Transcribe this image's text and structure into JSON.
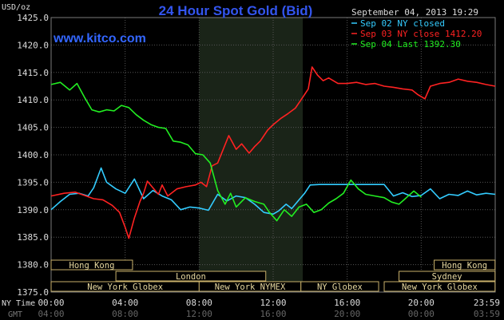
{
  "chart_data": {
    "type": "line",
    "title": "24 Hour Spot Gold (Bid)",
    "website": "www.kitco.com",
    "ylabel": "USD/oz",
    "ylim": [
      1375.0,
      1425.0
    ],
    "y_ticks": [
      "1425.0",
      "1420.0",
      "1415.0",
      "1410.0",
      "1405.0",
      "1400.0",
      "1395.0",
      "1390.0",
      "1385.0",
      "1380.0",
      "1375.0"
    ],
    "x_ticks_ny": [
      "00:00",
      "04:00",
      "08:00",
      "12:00",
      "16:00",
      "20:00",
      "23:59"
    ],
    "x_ticks_gmt": [
      "04:00",
      "08:00",
      "12:00",
      "16:00",
      "20:00",
      "00:00",
      "03:59"
    ],
    "x_tick_hours": [
      0,
      4,
      8,
      12,
      16,
      20,
      24
    ],
    "xlim_hours": [
      0,
      24
    ],
    "x_row_labels": {
      "ny": "NY Time",
      "gmt": "GMT"
    },
    "timestamp": "September 04, 2013 19:29",
    "grid": true,
    "legend_position": "top-right",
    "shaded_session_hours": [
      8.0,
      13.6
    ],
    "series": [
      {
        "name": "Sep 02 NY closed",
        "color": "#33ccff",
        "points": [
          [
            0,
            1390
          ],
          [
            0.5,
            1391.5
          ],
          [
            1,
            1392.8
          ],
          [
            1.5,
            1393
          ],
          [
            2,
            1392.5
          ],
          [
            2.3,
            1394
          ],
          [
            2.7,
            1397.6
          ],
          [
            3,
            1395
          ],
          [
            3.5,
            1393.8
          ],
          [
            4,
            1393
          ],
          [
            4.5,
            1395.6
          ],
          [
            5,
            1392
          ],
          [
            5.5,
            1393.5
          ],
          [
            6,
            1392.5
          ],
          [
            6.5,
            1391.8
          ],
          [
            7,
            1390
          ],
          [
            7.5,
            1390.5
          ],
          [
            8,
            1390.3
          ],
          [
            8.5,
            1389.9
          ],
          [
            9,
            1392.8
          ],
          [
            9.5,
            1391.6
          ],
          [
            10,
            1392.5
          ],
          [
            10.5,
            1392.2
          ],
          [
            11,
            1391
          ],
          [
            11.5,
            1389.5
          ],
          [
            12,
            1389.2
          ],
          [
            12.3,
            1389.8
          ],
          [
            12.7,
            1391
          ],
          [
            13,
            1390.2
          ],
          [
            13.4,
            1391.8
          ],
          [
            13.7,
            1393
          ],
          [
            14,
            1394.5
          ],
          [
            14.5,
            1394.6
          ],
          [
            15,
            1394.6
          ],
          [
            16,
            1394.6
          ],
          [
            17,
            1394.6
          ],
          [
            18,
            1394.6
          ],
          [
            18.5,
            1392.5
          ],
          [
            19,
            1393.1
          ],
          [
            19.5,
            1392.4
          ],
          [
            20,
            1392.6
          ],
          [
            20.5,
            1393.8
          ],
          [
            21,
            1392
          ],
          [
            21.5,
            1392.8
          ],
          [
            22,
            1392.6
          ],
          [
            22.5,
            1393.4
          ],
          [
            23,
            1392.7
          ],
          [
            23.5,
            1393
          ],
          [
            24,
            1392.8
          ]
        ]
      },
      {
        "name": "Sep 03 NY close 1412.20",
        "color": "#ff2222",
        "points": [
          [
            0,
            1392.5
          ],
          [
            0.7,
            1393
          ],
          [
            1.3,
            1393.2
          ],
          [
            1.8,
            1392.6
          ],
          [
            2.3,
            1392
          ],
          [
            2.8,
            1391.8
          ],
          [
            3.3,
            1390.8
          ],
          [
            3.7,
            1389.5
          ],
          [
            4,
            1386.8
          ],
          [
            4.2,
            1384.8
          ],
          [
            4.5,
            1388.5
          ],
          [
            4.8,
            1391.5
          ],
          [
            5,
            1393
          ],
          [
            5.2,
            1395.2
          ],
          [
            5.5,
            1394
          ],
          [
            5.8,
            1392.8
          ],
          [
            6,
            1394.5
          ],
          [
            6.3,
            1392.5
          ],
          [
            6.8,
            1393.8
          ],
          [
            7.3,
            1394.2
          ],
          [
            7.8,
            1394.5
          ],
          [
            8.1,
            1395
          ],
          [
            8.4,
            1394.2
          ],
          [
            8.7,
            1398
          ],
          [
            9,
            1398.5
          ],
          [
            9.3,
            1401
          ],
          [
            9.6,
            1403.5
          ],
          [
            10,
            1401
          ],
          [
            10.3,
            1402
          ],
          [
            10.7,
            1400.3
          ],
          [
            11,
            1401.5
          ],
          [
            11.3,
            1402.5
          ],
          [
            11.7,
            1404.5
          ],
          [
            12,
            1405.5
          ],
          [
            12.4,
            1406.6
          ],
          [
            12.8,
            1407.5
          ],
          [
            13.2,
            1408.5
          ],
          [
            13.6,
            1410.5
          ],
          [
            13.9,
            1412
          ],
          [
            14.1,
            1416
          ],
          [
            14.4,
            1414.5
          ],
          [
            14.7,
            1413.5
          ],
          [
            15,
            1414
          ],
          [
            15.5,
            1413
          ],
          [
            16,
            1413
          ],
          [
            16.5,
            1413.2
          ],
          [
            17,
            1412.8
          ],
          [
            17.5,
            1413
          ],
          [
            18,
            1412.5
          ],
          [
            18.5,
            1412.3
          ],
          [
            19,
            1412
          ],
          [
            19.5,
            1411.8
          ],
          [
            19.8,
            1411
          ],
          [
            20.2,
            1410.2
          ],
          [
            20.5,
            1412.5
          ],
          [
            21,
            1413
          ],
          [
            21.5,
            1413.2
          ],
          [
            22,
            1413.8
          ],
          [
            22.5,
            1413.4
          ],
          [
            23,
            1413.2
          ],
          [
            23.5,
            1412.8
          ],
          [
            24,
            1412.5
          ]
        ]
      },
      {
        "name": "Sep 04 Last 1392.30",
        "color": "#22ee22",
        "points": [
          [
            0,
            1412.8
          ],
          [
            0.5,
            1413.2
          ],
          [
            1,
            1411.8
          ],
          [
            1.4,
            1413
          ],
          [
            1.8,
            1410.5
          ],
          [
            2.2,
            1408.2
          ],
          [
            2.6,
            1407.8
          ],
          [
            3,
            1408.2
          ],
          [
            3.4,
            1408
          ],
          [
            3.8,
            1409
          ],
          [
            4.2,
            1408.6
          ],
          [
            4.6,
            1407.3
          ],
          [
            5,
            1406.3
          ],
          [
            5.4,
            1405.5
          ],
          [
            5.8,
            1405
          ],
          [
            6.2,
            1404.8
          ],
          [
            6.6,
            1402.5
          ],
          [
            7,
            1402.3
          ],
          [
            7.4,
            1401.8
          ],
          [
            7.8,
            1400.2
          ],
          [
            8.2,
            1400
          ],
          [
            8.6,
            1398.5
          ],
          [
            9,
            1393.5
          ],
          [
            9.4,
            1391
          ],
          [
            9.7,
            1393
          ],
          [
            10,
            1390.5
          ],
          [
            10.5,
            1392.2
          ],
          [
            11,
            1391.5
          ],
          [
            11.5,
            1391
          ],
          [
            11.8,
            1389.5
          ],
          [
            12.2,
            1388
          ],
          [
            12.6,
            1390
          ],
          [
            13,
            1388.8
          ],
          [
            13.4,
            1390.5
          ],
          [
            13.8,
            1391
          ],
          [
            14.2,
            1389.5
          ],
          [
            14.6,
            1390
          ],
          [
            15,
            1391.2
          ],
          [
            15.4,
            1392
          ],
          [
            15.8,
            1393
          ],
          [
            16.2,
            1395.4
          ],
          [
            16.6,
            1393.8
          ],
          [
            17,
            1392.8
          ],
          [
            17.5,
            1392.5
          ],
          [
            18,
            1392.2
          ],
          [
            18.4,
            1391.4
          ],
          [
            18.8,
            1391
          ],
          [
            19.2,
            1392.2
          ],
          [
            19.6,
            1393.4
          ],
          [
            20,
            1392.3
          ]
        ]
      }
    ],
    "sessions": [
      {
        "label": "Hong Kong",
        "row": 0,
        "start_hour": 0.0,
        "end_hour": 4.4
      },
      {
        "label": "Hong Kong",
        "row": 0,
        "start_hour": 20.7,
        "end_hour": 23.99
      },
      {
        "label": "London",
        "row": 1,
        "start_hour": 3.5,
        "end_hour": 11.6
      },
      {
        "label": "Sydney",
        "row": 1,
        "start_hour": 18.8,
        "end_hour": 23.99
      },
      {
        "label": "New York Globex",
        "row": 2,
        "start_hour": 0.0,
        "end_hour": 8.0
      },
      {
        "label": "New York NYMEX",
        "row": 2,
        "start_hour": 8.0,
        "end_hour": 13.5
      },
      {
        "label": "NY Globex",
        "row": 2,
        "start_hour": 13.5,
        "end_hour": 17.7
      },
      {
        "label": "New York Globex",
        "row": 2,
        "start_hour": 18.0,
        "end_hour": 23.99
      }
    ]
  }
}
